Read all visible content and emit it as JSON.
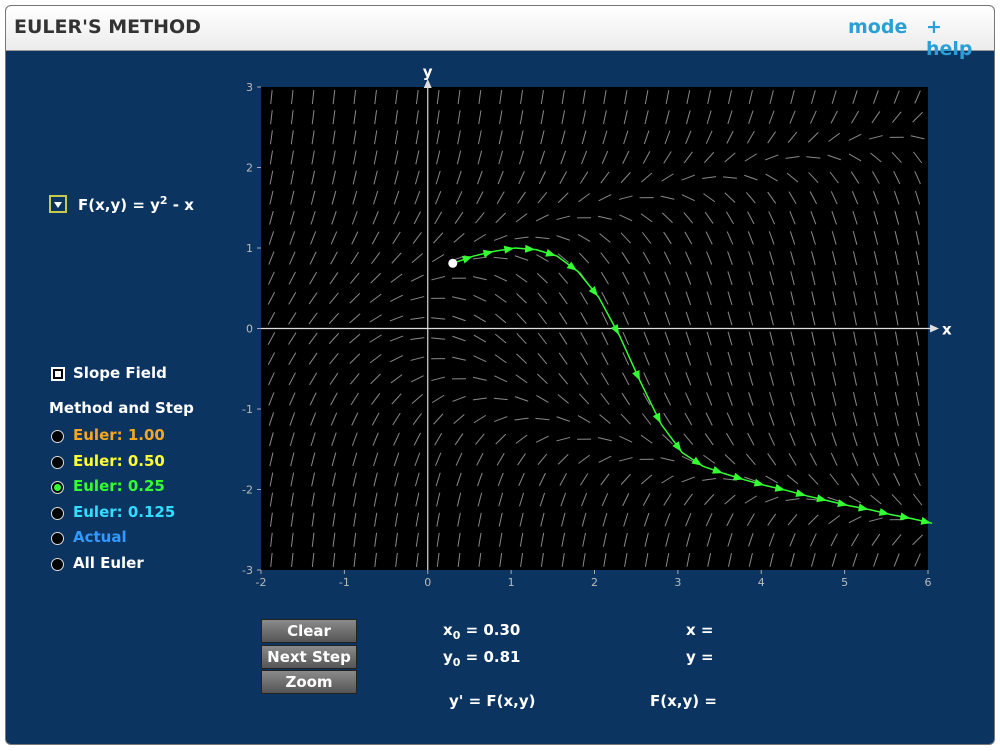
{
  "header": {
    "title": "EULER'S METHOD",
    "mode": "mode",
    "help": "+ help"
  },
  "function_label": {
    "lhs": "F(x,y) = y",
    "power": "2",
    "rest": " - x"
  },
  "slope_field": "Slope Field",
  "method_heading": "Method and Step",
  "methods": [
    {
      "label": "Euler: 1.00",
      "color": "#f5a623",
      "selected": false
    },
    {
      "label": "Euler: 0.50",
      "color": "#ffff33",
      "selected": false
    },
    {
      "label": "Euler: 0.25",
      "color": "#33ff33",
      "selected": true
    },
    {
      "label": "Euler: 0.125",
      "color": "#33ddff",
      "selected": false
    },
    {
      "label": "Actual",
      "color": "#3399ff",
      "selected": false
    },
    {
      "label": "All Euler",
      "color": "#ffffff",
      "selected": false
    }
  ],
  "buttons": [
    "Clear",
    "Next Step",
    "Zoom"
  ],
  "readouts": {
    "x0": {
      "name": "x",
      "sub": "0",
      "value": " = 0.30"
    },
    "y0": {
      "name": "y",
      "sub": "0",
      "value": " = 0.81"
    },
    "equation": "y' = F(x,y)",
    "x": "x =",
    "y": "y =",
    "f": "F(x,y) ="
  },
  "chart_data": {
    "type": "line",
    "x_label": "x",
    "y_label": "y",
    "xlim": [
      -2,
      6
    ],
    "ylim": [
      -3,
      3
    ],
    "xticks": [
      -2,
      -1,
      0,
      1,
      2,
      3,
      4,
      5,
      6
    ],
    "yticks": [
      -3,
      -2,
      -1,
      0,
      1,
      2,
      3
    ],
    "series": [
      {
        "color": "#33ff33",
        "x": [
          0.3,
          0.55,
          0.8,
          1.05,
          1.3,
          1.55,
          1.8,
          2.05,
          2.3,
          2.55,
          2.8,
          3.05,
          3.3,
          3.55,
          3.8,
          4.05,
          4.3,
          4.55,
          4.8,
          5.05,
          5.3,
          5.55,
          5.8,
          6.05
        ],
        "values": [
          0.81,
          0.9,
          0.96,
          1.0,
          0.98,
          0.9,
          0.71,
          0.39,
          -0.09,
          -0.66,
          -1.19,
          -1.54,
          -1.71,
          -1.8,
          -1.88,
          -1.95,
          -2.01,
          -2.08,
          -2.14,
          -2.2,
          -2.25,
          -2.31,
          -2.36,
          -2.42
        ]
      }
    ]
  }
}
